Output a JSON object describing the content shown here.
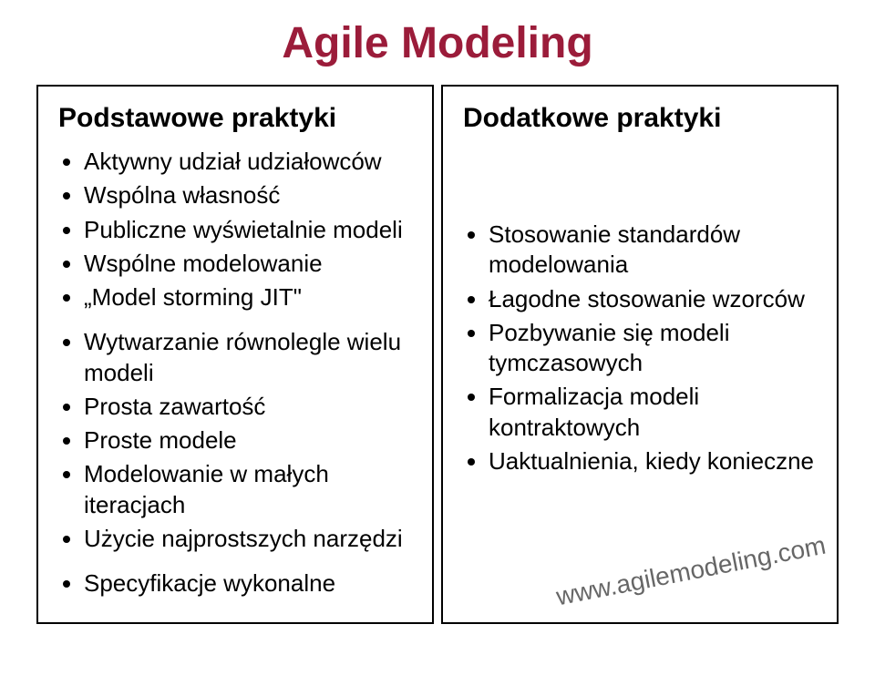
{
  "title": {
    "text": "Agile Modeling",
    "color": "#9b1c3a"
  },
  "left": {
    "heading": "Podstawowe praktyki",
    "group1": [
      "Aktywny udział udziałowców",
      "Wspólna własność",
      "Publiczne wyświetalnie modeli",
      "Wspólne modelowanie",
      "„Model storming JIT\""
    ],
    "group2": [
      "Wytwarzanie równolegle wielu modeli",
      "Prosta zawartość",
      "Proste modele",
      "Modelowanie w małych iteracjach",
      "Użycie najprostszych narzędzi"
    ],
    "group3": [
      "Specyfikacje wykonalne"
    ]
  },
  "right": {
    "heading": "Dodatkowe praktyki",
    "items": [
      "Stosowanie standardów modelowania",
      "Łagodne stosowanie wzorców",
      "Pozbywanie się modeli tymczasowych",
      "Formalizacja modeli kontraktowych",
      "Uaktualnienia, kiedy konieczne"
    ]
  },
  "watermark": "www.agilemodeling.com",
  "colors": {
    "border": "#000000",
    "text": "#000000",
    "background": "#ffffff"
  }
}
